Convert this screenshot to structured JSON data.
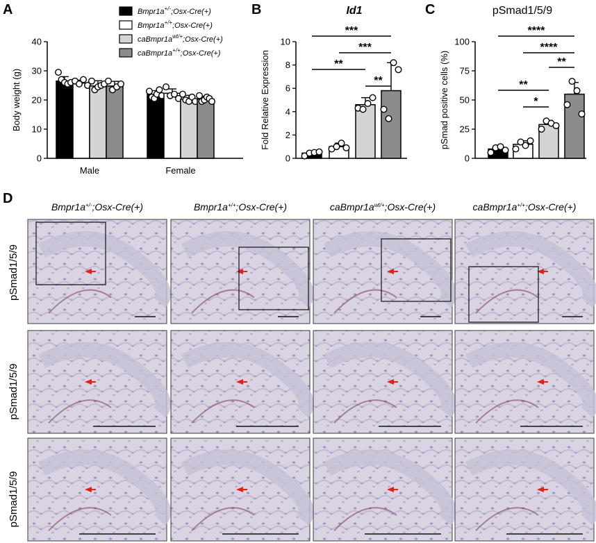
{
  "panel_labels": {
    "a": "A",
    "b": "B",
    "c": "C",
    "d": "D"
  },
  "genotypes": [
    {
      "pre": "Bmpr1a",
      "sup": "+/-",
      "post": ";Osx-Cre(+)",
      "fill": "#000000"
    },
    {
      "pre": "Bmpr1a",
      "sup": "+/+",
      "post": ";Osx-Cre(+)",
      "fill": "#ffffff"
    },
    {
      "pre": "caBmpr1a",
      "sup": "wt/+",
      "post": ";Osx-Cre(+)",
      "fill": "#d4d4d4"
    },
    {
      "pre": "caBmpr1a",
      "sup": "+/+",
      "post": ";Osx-Cre(+)",
      "fill": "#8c8c8c"
    }
  ],
  "chart_data": [
    {
      "panel": "A",
      "type": "bar",
      "title": "",
      "ylabel": "Body weight (g)",
      "xlabel": "",
      "ylim": [
        0,
        40
      ],
      "yticks": [
        0,
        10,
        20,
        30,
        40
      ],
      "categories": [
        "Male",
        "Female"
      ],
      "series": [
        {
          "name": "Bmpr1a+/-;Osx-Cre(+)",
          "values": [
            26.5,
            22.0
          ],
          "err": [
            1.5,
            1.2
          ],
          "points": [
            [
              29.5,
              27,
              26,
              25.5,
              26
            ],
            [
              23,
              21,
              20.5,
              22,
              23.5,
              21.5
            ]
          ]
        },
        {
          "name": "Bmpr1a+/+;Osx-Cre(+)",
          "values": [
            25.8,
            22.3
          ],
          "err": [
            1.0,
            1.5
          ],
          "points": [
            [
              26.5,
              25.5,
              27,
              25
            ],
            [
              24.5,
              21.5,
              22,
              20.5
            ]
          ]
        },
        {
          "name": "caBmpr1awt/+;Osx-Cre(+)",
          "values": [
            24.8,
            20.3
          ],
          "err": [
            1.8,
            1.3
          ],
          "points": [
            [
              26.5,
              23.5,
              24.5,
              25,
              25.5
            ],
            [
              22,
              20,
              19.5,
              21,
              19.5
            ]
          ]
        },
        {
          "name": "caBmpr1a+/+;Osx-Cre(+)",
          "values": [
            24.8,
            20.3
          ],
          "err": [
            1.6,
            1.0
          ],
          "points": [
            [
              26.5,
              23.5,
              24.5,
              25.5
            ],
            [
              21.5,
              19.5,
              20,
              21,
              20.5,
              19.5
            ]
          ]
        }
      ]
    },
    {
      "panel": "B",
      "type": "bar",
      "title": "Id1",
      "ylabel": "Fold Relative Expression",
      "xlabel": "",
      "ylim": [
        0,
        10
      ],
      "yticks": [
        0,
        2,
        4,
        6,
        8,
        10
      ],
      "categories": [
        "Bmpr1a+/-;Osx-Cre(+)",
        "Bmpr1a+/+;Osx-Cre(+)",
        "caBmpr1awt/+;Osx-Cre(+)",
        "caBmpr1a+/+;Osx-Cre(+)"
      ],
      "values": [
        0.45,
        1.0,
        4.6,
        5.8
      ],
      "err": [
        0.15,
        0.3,
        0.6,
        2.4
      ],
      "points": [
        [
          0.2,
          0.45,
          0.5,
          0.55
        ],
        [
          0.8,
          1.0,
          1.3,
          0.9
        ],
        [
          4.3,
          4.2,
          4.7,
          5.2
        ],
        [
          4.2,
          3.4,
          8.2,
          7.6
        ]
      ],
      "significance": [
        {
          "from": 2,
          "to": 3,
          "label": "**"
        },
        {
          "from": 0,
          "to": 2,
          "label": "**"
        },
        {
          "from": 1,
          "to": 3,
          "label": "***"
        },
        {
          "from": 0,
          "to": 3,
          "label": "***"
        }
      ]
    },
    {
      "panel": "C",
      "type": "bar",
      "title": "pSmad1/5/9",
      "ylabel": "pSmad positive cells (%)",
      "xlabel": "",
      "ylim": [
        0,
        100
      ],
      "yticks": [
        0,
        25,
        50,
        75,
        100
      ],
      "categories": [
        "Bmpr1a+/-;Osx-Cre(+)",
        "Bmpr1a+/+;Osx-Cre(+)",
        "caBmpr1awt/+;Osx-Cre(+)",
        "caBmpr1a+/+;Osx-Cre(+)"
      ],
      "values": [
        8,
        12,
        29,
        55
      ],
      "err": [
        3,
        3,
        3.5,
        10
      ],
      "points": [
        [
          5,
          9,
          10,
          7
        ],
        [
          8,
          14,
          11,
          15
        ],
        [
          25,
          32,
          30,
          28
        ],
        [
          46,
          66,
          58,
          38
        ]
      ],
      "significance": [
        {
          "from": 1,
          "to": 2,
          "label": "*"
        },
        {
          "from": 0,
          "to": 2,
          "label": "**"
        },
        {
          "from": 2,
          "to": 3,
          "label": "**"
        },
        {
          "from": 1,
          "to": 3,
          "label": "****"
        },
        {
          "from": 0,
          "to": 3,
          "label": "****"
        }
      ]
    }
  ],
  "panel_d": {
    "row_label": "pSmad1/5/9",
    "columns": [
      {
        "pre": "Bmpr1a",
        "sup": "+/-",
        "post": ";Osx-Cre(+)"
      },
      {
        "pre": "Bmpr1a",
        "sup": "+/+",
        "post": ";Osx-Cre(+)"
      },
      {
        "pre": "caBmpr1a",
        "sup": "wt/+",
        "post": ";Osx-Cre(+)"
      },
      {
        "pre": "caBmpr1a",
        "sup": "+/+",
        "post": ";Osx-Cre(+)"
      }
    ],
    "colors": {
      "background": "#d9d3e2",
      "tissue": "#c6c0d6",
      "nuclei": "#4c4a96",
      "stain": "#7a3a5a",
      "arrow": "#e0201a"
    }
  }
}
